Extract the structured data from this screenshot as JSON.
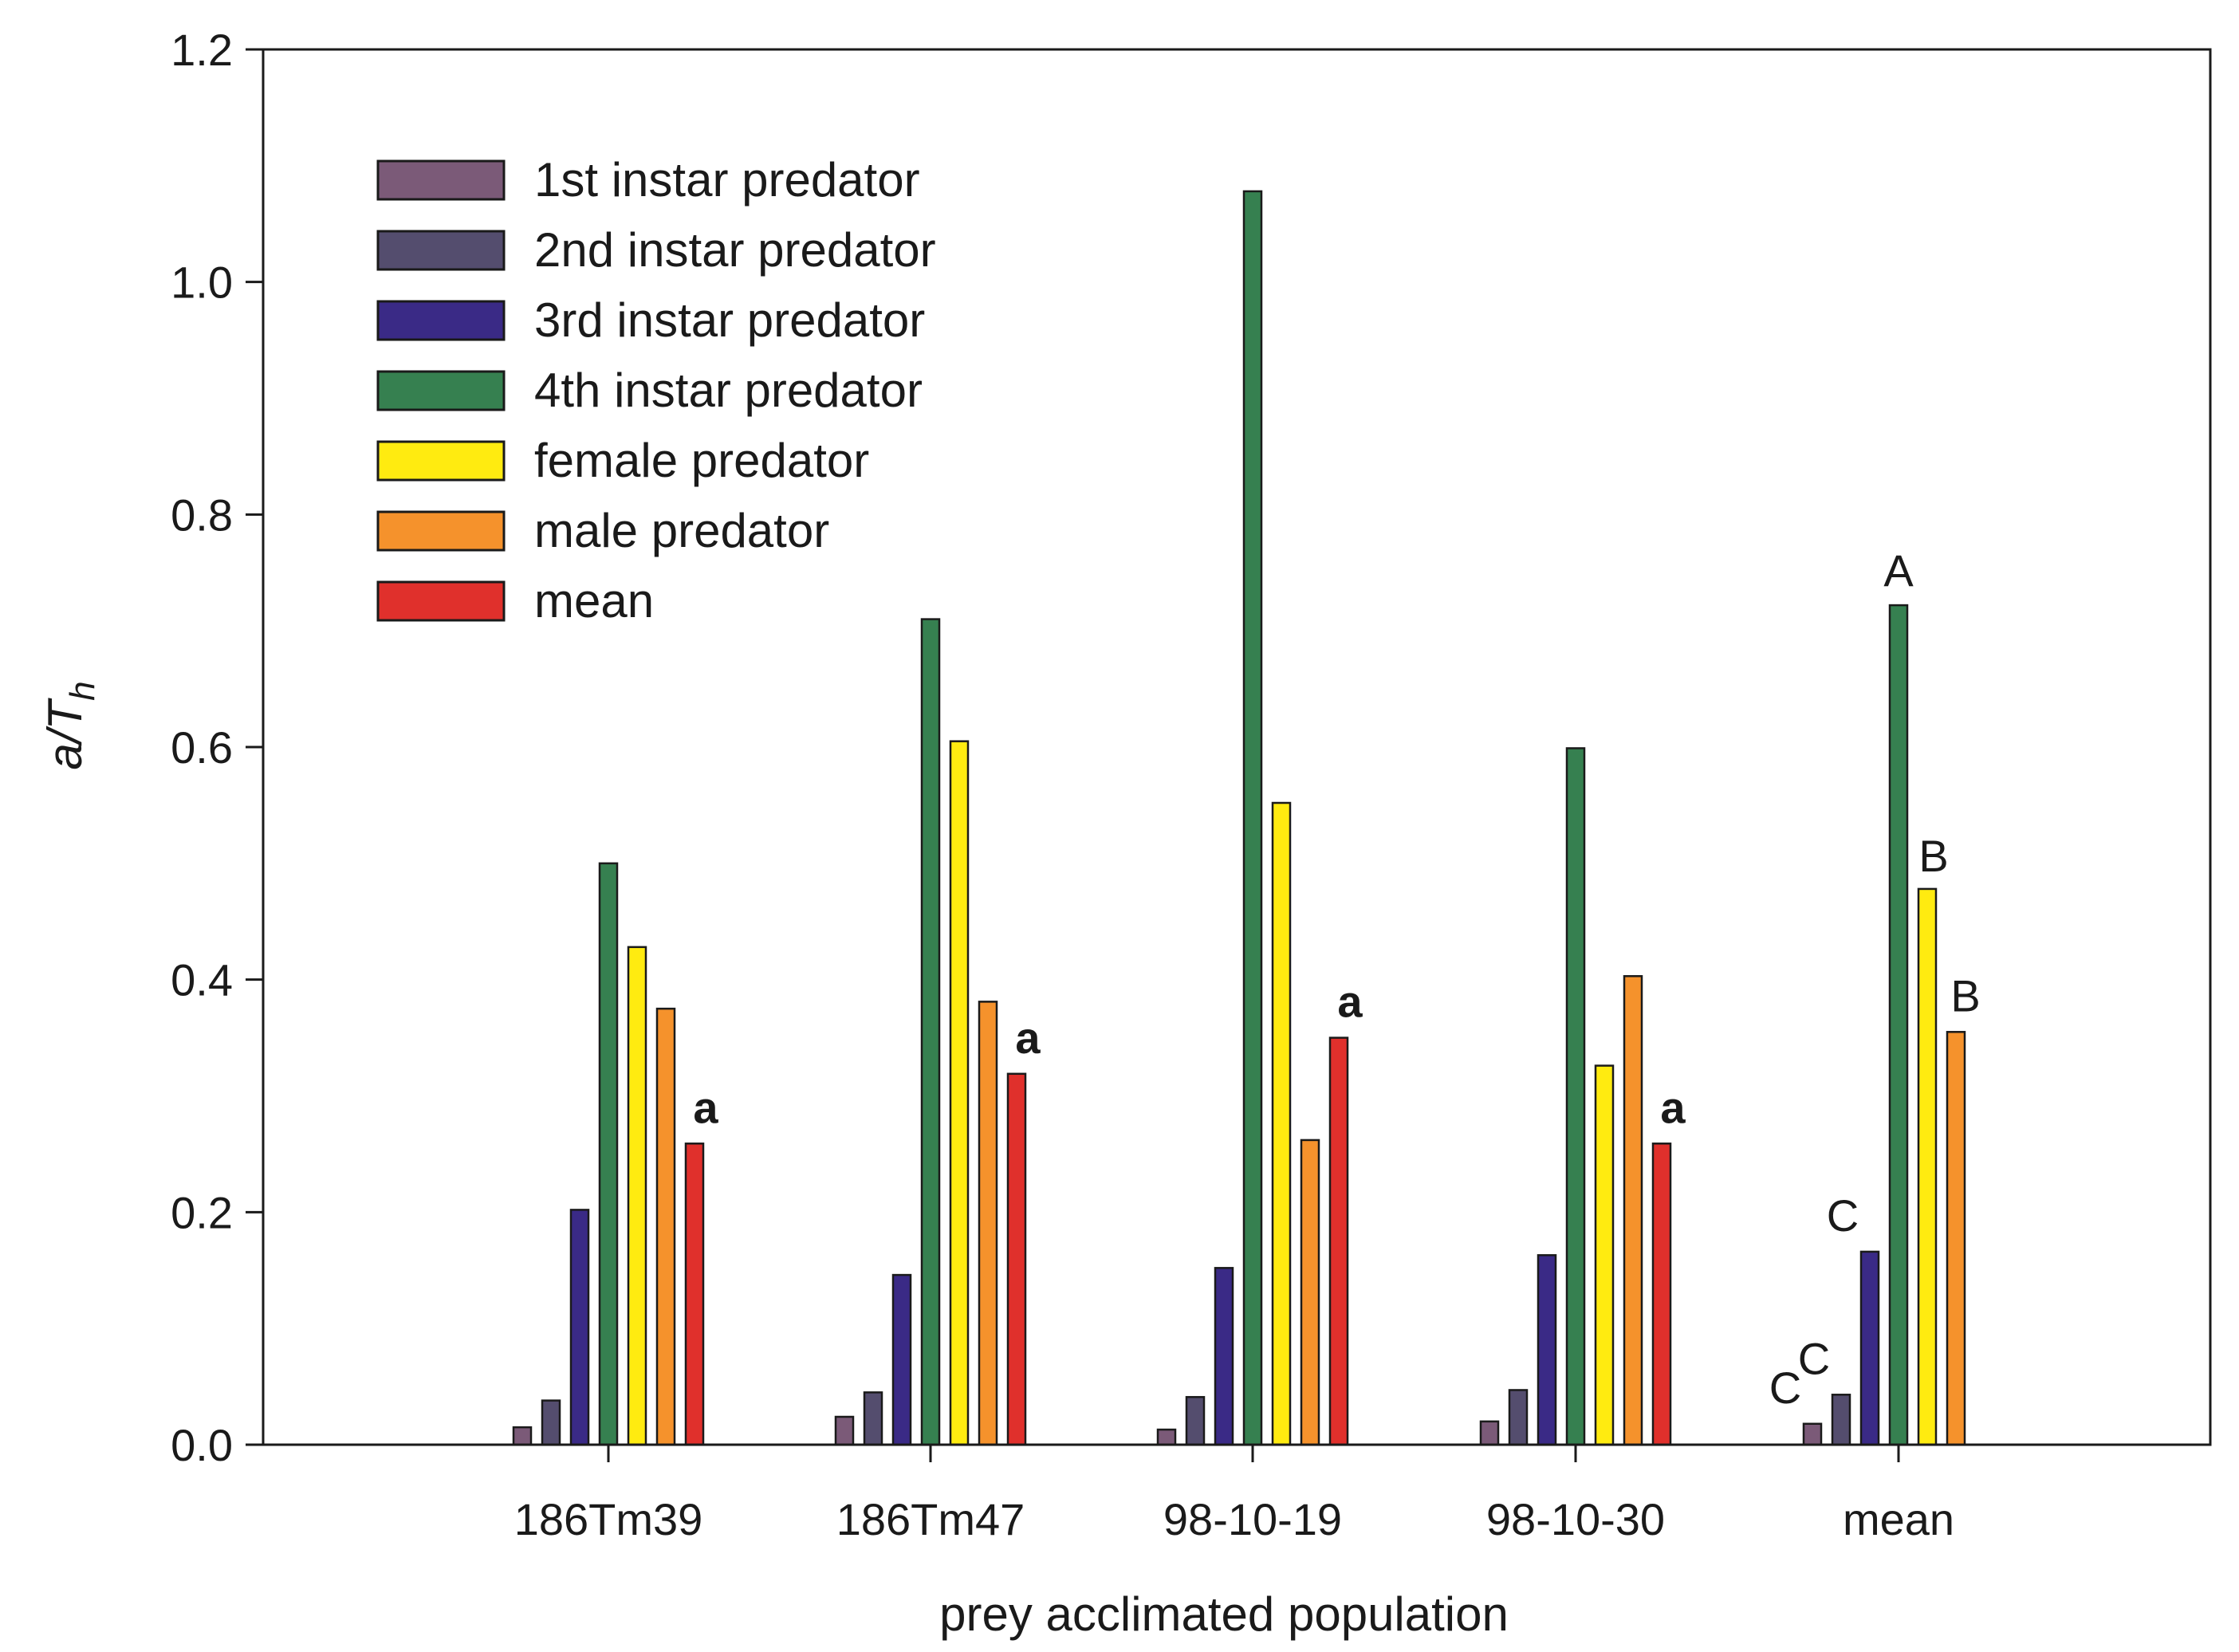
{
  "chart_data": {
    "type": "bar",
    "title": "",
    "xlabel": "prey acclimated population",
    "ylabel": {
      "main": "a/T",
      "subscript": "h"
    },
    "ylim": [
      0,
      1.2
    ],
    "yticks": [
      "0.0",
      "0.2",
      "0.4",
      "0.6",
      "0.8",
      "1.0",
      "1.2"
    ],
    "grid": false,
    "legend_position": "top-left",
    "categories": [
      "186Tm39",
      "186Tm47",
      "98-10-19",
      "98-10-30",
      "mean"
    ],
    "series": [
      {
        "name": "1st instar predator",
        "color": "#7b5a78",
        "values": [
          0.015,
          0.024,
          0.013,
          0.02,
          0.018
        ]
      },
      {
        "name": "2nd instar predator",
        "color": "#544d6e",
        "values": [
          0.038,
          0.045,
          0.041,
          0.047,
          0.043
        ]
      },
      {
        "name": "3rd instar predator",
        "color": "#3a2a86",
        "values": [
          0.202,
          0.146,
          0.152,
          0.163,
          0.166
        ]
      },
      {
        "name": "4th instar predator",
        "color": "#368050",
        "values": [
          0.5,
          0.71,
          1.078,
          0.599,
          0.722
        ]
      },
      {
        "name": "female predator",
        "color": "#ffeb10",
        "values": [
          0.428,
          0.605,
          0.552,
          0.326,
          0.478
        ]
      },
      {
        "name": "male predator",
        "color": "#f5922c",
        "values": [
          0.375,
          0.381,
          0.262,
          0.403,
          0.355
        ]
      },
      {
        "name": "mean",
        "color": "#e0302c",
        "values": [
          0.259,
          0.319,
          0.35,
          0.259,
          null
        ]
      }
    ],
    "annotations": [
      {
        "text": "a",
        "category": "186Tm39",
        "series": "mean",
        "bold": true
      },
      {
        "text": "a",
        "category": "186Tm47",
        "series": "mean",
        "bold": true
      },
      {
        "text": "a",
        "category": "98-10-19",
        "series": "mean",
        "bold": true
      },
      {
        "text": "a",
        "category": "98-10-30",
        "series": "mean",
        "bold": true
      },
      {
        "text": "C",
        "category": "mean",
        "series": "1st instar predator",
        "bold": false
      },
      {
        "text": "C",
        "category": "mean",
        "series": "2nd instar predator",
        "bold": false
      },
      {
        "text": "C",
        "category": "mean",
        "series": "3rd instar predator",
        "bold": false
      },
      {
        "text": "A",
        "category": "mean",
        "series": "4th instar predator",
        "bold": false
      },
      {
        "text": "B",
        "category": "mean",
        "series": "female predator",
        "bold": false
      },
      {
        "text": "B",
        "category": "mean",
        "series": "male predator",
        "bold": false
      }
    ]
  }
}
